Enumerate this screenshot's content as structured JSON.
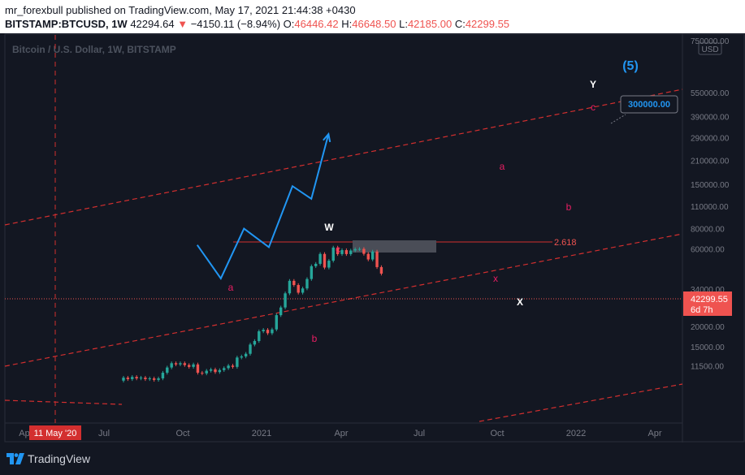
{
  "header": {
    "publisher_line": "mr_forexbull published on TradingView.com, May 17, 2021 21:44:38 +0430",
    "symbol": "BITSTAMP:BTCUSD, 1W",
    "last": "42294.64",
    "change": "−4150.11 (−8.94%)",
    "o_label": "O:",
    "o_value": "46446.42",
    "h_label": "H:",
    "h_value": "46648.50",
    "l_label": "L:",
    "l_value": "42185.00",
    "c_label": "C:",
    "c_value": "42299.55"
  },
  "chart_data": {
    "type": "candlestick",
    "title": "Bitcoin / U.S. Dollar, 1W, BITSTAMP",
    "currency_badge": "USD",
    "y_scale": "log",
    "y_ticks": [
      "750000.00",
      "550000.00",
      "390000.00",
      "290000.00",
      "210000.00",
      "150000.00",
      "110000.00",
      "80000.00",
      "60000.00",
      "34000.00",
      "26000.00",
      "20000.00",
      "15000.00",
      "11500.00"
    ],
    "x_ticks": [
      "Ap",
      "Jul",
      "Oct",
      "2021",
      "Apr",
      "Jul",
      "Oct",
      "2022",
      "Apr"
    ],
    "x_crosshair_label": "11 May '20",
    "price_label": {
      "value": "42299.55",
      "countdown": "6d 7h"
    },
    "target_label": "300000.00",
    "fib_level": "2.618",
    "wave_labels": [
      "(5)",
      "Y",
      "W",
      "X",
      "a",
      "b",
      "c",
      "a",
      "b",
      "c",
      "x"
    ],
    "candles": [
      {
        "o": 9300,
        "c": 9700
      },
      {
        "o": 9700,
        "c": 9500
      },
      {
        "o": 9500,
        "c": 9800
      },
      {
        "o": 9800,
        "c": 9600
      },
      {
        "o": 9600,
        "c": 9700
      },
      {
        "o": 9700,
        "c": 9500
      },
      {
        "o": 9500,
        "c": 9600
      },
      {
        "o": 9600,
        "c": 9400
      },
      {
        "o": 9400,
        "c": 9600
      },
      {
        "o": 9600,
        "c": 10400
      },
      {
        "o": 10400,
        "c": 11200
      },
      {
        "o": 11200,
        "c": 11900
      },
      {
        "o": 11900,
        "c": 11700
      },
      {
        "o": 11700,
        "c": 11900
      },
      {
        "o": 11900,
        "c": 11600
      },
      {
        "o": 11600,
        "c": 11300
      },
      {
        "o": 11300,
        "c": 11700
      },
      {
        "o": 11700,
        "c": 10400
      },
      {
        "o": 10400,
        "c": 10300
      },
      {
        "o": 10300,
        "c": 10700
      },
      {
        "o": 10700,
        "c": 10900
      },
      {
        "o": 10900,
        "c": 10500
      },
      {
        "o": 10500,
        "c": 10800
      },
      {
        "o": 10800,
        "c": 11100
      },
      {
        "o": 11100,
        "c": 11500
      },
      {
        "o": 11500,
        "c": 11300
      },
      {
        "o": 11300,
        "c": 12900
      },
      {
        "o": 12900,
        "c": 13100
      },
      {
        "o": 13100,
        "c": 13600
      },
      {
        "o": 13600,
        "c": 15500
      },
      {
        "o": 15500,
        "c": 16300
      },
      {
        "o": 16300,
        "c": 18700
      },
      {
        "o": 18700,
        "c": 19100
      },
      {
        "o": 19100,
        "c": 18200
      },
      {
        "o": 18200,
        "c": 19200
      },
      {
        "o": 19200,
        "c": 23500
      },
      {
        "o": 23500,
        "c": 26200
      },
      {
        "o": 26200,
        "c": 32000
      },
      {
        "o": 32000,
        "c": 38200
      },
      {
        "o": 38200,
        "c": 36000
      },
      {
        "o": 36000,
        "c": 32300
      },
      {
        "o": 32300,
        "c": 34300
      },
      {
        "o": 34300,
        "c": 39200
      },
      {
        "o": 39200,
        "c": 47000
      },
      {
        "o": 47000,
        "c": 48600
      },
      {
        "o": 48600,
        "c": 55900
      },
      {
        "o": 55900,
        "c": 46100
      },
      {
        "o": 46100,
        "c": 50800
      },
      {
        "o": 50800,
        "c": 61200
      },
      {
        "o": 61200,
        "c": 55800
      },
      {
        "o": 55800,
        "c": 59000
      },
      {
        "o": 59000,
        "c": 55800
      },
      {
        "o": 55800,
        "c": 58700
      },
      {
        "o": 58700,
        "c": 59800
      },
      {
        "o": 59800,
        "c": 60000
      },
      {
        "o": 60000,
        "c": 56000
      },
      {
        "o": 56000,
        "c": 51700
      },
      {
        "o": 51700,
        "c": 57800
      },
      {
        "o": 57800,
        "c": 46400
      },
      {
        "o": 46400,
        "c": 42300
      }
    ],
    "projection_path": [
      {
        "date": "2021-04-07",
        "price": 63500
      },
      {
        "date": "2021-06-01",
        "price": 39500
      },
      {
        "date": "2021-07-25",
        "price": 80000
      },
      {
        "date": "2021-09-21",
        "price": 61500
      },
      {
        "date": "2021-11-15",
        "price": 146000
      },
      {
        "date": "2021-12-29",
        "price": 122000
      },
      {
        "date": "2022-02-07",
        "price": 305000
      }
    ]
  },
  "footer": {
    "brand": "TradingView"
  }
}
